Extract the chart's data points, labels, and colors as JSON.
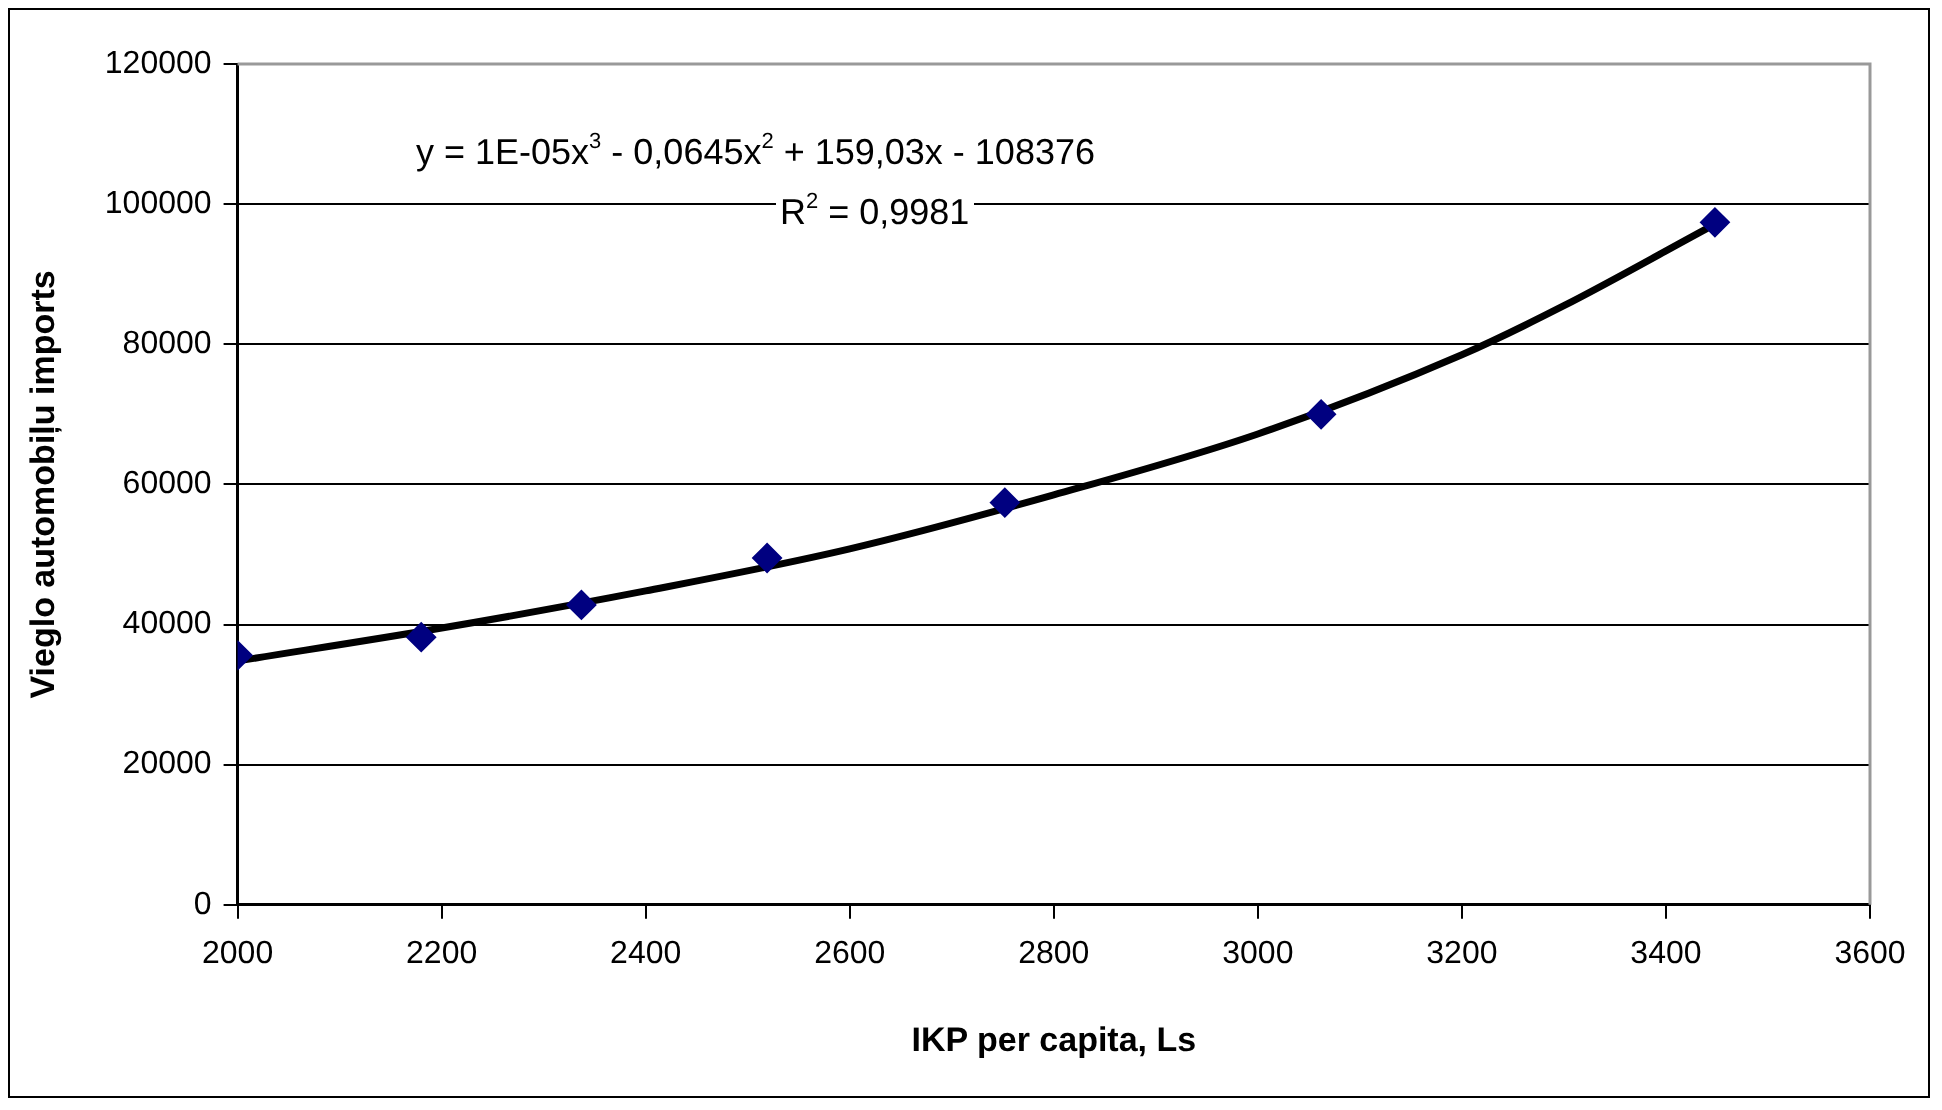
{
  "chart_data": {
    "type": "scatter",
    "xlabel": "IKP per capita, Ls",
    "ylabel": "Vieglo automobiļu imports",
    "annotations": [
      "y = 1E-05x$^{3}$ - 0,0645x$^{2}$ + 159,03x - 108376",
      "R$^{2}$ = 0,9981"
    ],
    "series": [
      {
        "color": "#000080",
        "marker": "diamond",
        "x": [
          2000,
          2180,
          2337,
          2519,
          2752,
          3062,
          3448
        ],
        "values": [
          35600,
          38200,
          42800,
          49500,
          57400,
          70000,
          97400
        ]
      },
      {
        "type": "line",
        "color": "#000000",
        "marker": "none",
        "line_style": "solid",
        "x": [
          2000,
          2200,
          2400,
          2600,
          2800,
          3000,
          3200,
          3300,
          3440
        ],
        "values": [
          34800,
          39500,
          44800,
          50800,
          58500,
          67200,
          78500,
          85500,
          96500
        ]
      }
    ],
    "xlim": [
      2000,
      3600
    ],
    "xticks": [
      2000,
      2200,
      2400,
      2600,
      2800,
      3000,
      3200,
      3400,
      3600
    ],
    "ylim": [
      0,
      120000
    ],
    "yticks": [
      0,
      20000,
      40000,
      60000,
      80000,
      100000,
      120000
    ],
    "grid": "y",
    "legend": false
  }
}
